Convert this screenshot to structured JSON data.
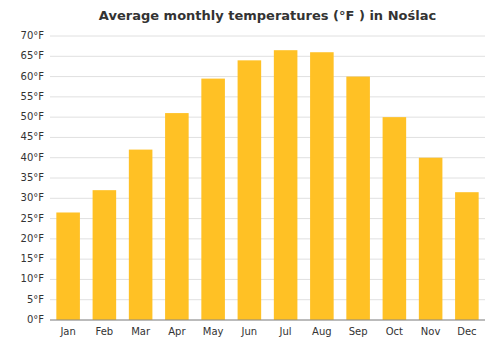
{
  "chart_data": {
    "type": "bar",
    "title": "Average monthly temperatures (°F ) in Noślac",
    "categories": [
      "Jan",
      "Feb",
      "Mar",
      "Apr",
      "May",
      "Jun",
      "Jul",
      "Aug",
      "Sep",
      "Oct",
      "Nov",
      "Dec"
    ],
    "values": [
      26.5,
      32,
      42,
      51,
      59.5,
      64,
      66.5,
      66,
      60,
      50,
      40,
      31.5
    ],
    "color": "#FFC125",
    "ylim": [
      0,
      70
    ],
    "yticks": [
      {
        "value": 0,
        "label": "0°F"
      },
      {
        "value": 5,
        "label": "5°F"
      },
      {
        "value": 10,
        "label": "10°F"
      },
      {
        "value": 15,
        "label": "15°F"
      },
      {
        "value": 20,
        "label": "20°F"
      },
      {
        "value": 25,
        "label": "25°F"
      },
      {
        "value": 30,
        "label": "30°F"
      },
      {
        "value": 35,
        "label": "35°F"
      },
      {
        "value": 40,
        "label": "40°F"
      },
      {
        "value": 45,
        "label": "45°F"
      },
      {
        "value": 50,
        "label": "50°F"
      },
      {
        "value": 55,
        "label": "55°F"
      },
      {
        "value": 60,
        "label": "60°F"
      },
      {
        "value": 65,
        "label": "65°F"
      },
      {
        "value": 70,
        "label": "70°F"
      }
    ],
    "grid": true
  }
}
